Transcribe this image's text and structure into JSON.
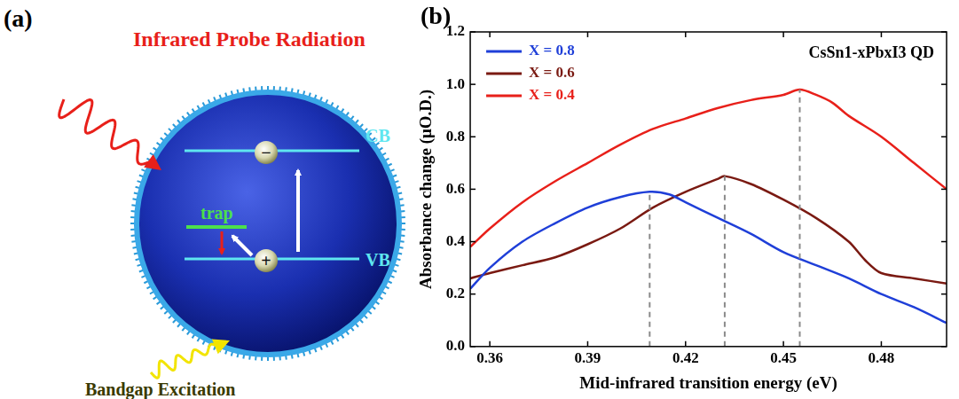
{
  "diagram": {
    "panel_label": "(a)",
    "probe_label": "Infrared Probe Radiation",
    "excitation_label": "Bandgap Excitation",
    "levels": {
      "cb": "CB",
      "vb": "VB",
      "trap": "trap"
    },
    "carriers": {
      "electron": "−",
      "hole": "+"
    }
  },
  "chart_data": {
    "panel_label": "(b)",
    "type": "line",
    "annotation": "CsSn1-xPbxI3 QD",
    "x_label": "Mid-infrared transition energy (eV)",
    "y_label": "Absorbance change (μO.D.)",
    "xlim": [
      0.354,
      0.5
    ],
    "xticks": [
      0.36,
      0.39,
      0.42,
      0.45,
      0.48
    ],
    "ylim": [
      0,
      1.2
    ],
    "yticks": [
      {
        "value": 0,
        "label": "0.0"
      },
      0.2,
      0.4,
      0.6,
      0.8,
      {
        "value": 1,
        "label": "1.0"
      },
      1.2
    ],
    "grid": false,
    "legend": "upper left",
    "series": [
      {
        "name": "X = 0.8",
        "color": "#1f3fd8",
        "peak": 0.409,
        "x": [
          0.354,
          0.36,
          0.37,
          0.38,
          0.39,
          0.4,
          0.409,
          0.415,
          0.42,
          0.43,
          0.44,
          0.45,
          0.46,
          0.47,
          0.48,
          0.49,
          0.5
        ],
        "values": [
          0.22,
          0.3,
          0.4,
          0.47,
          0.53,
          0.57,
          0.59,
          0.58,
          0.55,
          0.49,
          0.43,
          0.36,
          0.31,
          0.26,
          0.2,
          0.15,
          0.09
        ]
      },
      {
        "name": "X = 0.6",
        "color": "#7a1a12",
        "peak": 0.432,
        "x": [
          0.354,
          0.36,
          0.37,
          0.38,
          0.39,
          0.4,
          0.41,
          0.42,
          0.43,
          0.432,
          0.44,
          0.45,
          0.46,
          0.47,
          0.475,
          0.48,
          0.49,
          0.5
        ],
        "values": [
          0.26,
          0.28,
          0.31,
          0.34,
          0.39,
          0.45,
          0.53,
          0.59,
          0.64,
          0.65,
          0.62,
          0.56,
          0.49,
          0.4,
          0.33,
          0.28,
          0.26,
          0.24
        ]
      },
      {
        "name": "X = 0.4",
        "color": "#e8201a",
        "peak": 0.455,
        "x": [
          0.354,
          0.36,
          0.37,
          0.38,
          0.39,
          0.4,
          0.41,
          0.42,
          0.43,
          0.44,
          0.45,
          0.455,
          0.46,
          0.465,
          0.47,
          0.48,
          0.49,
          0.5
        ],
        "values": [
          0.38,
          0.45,
          0.55,
          0.63,
          0.7,
          0.77,
          0.83,
          0.87,
          0.91,
          0.94,
          0.96,
          0.98,
          0.96,
          0.93,
          0.88,
          0.8,
          0.7,
          0.6
        ]
      }
    ]
  }
}
